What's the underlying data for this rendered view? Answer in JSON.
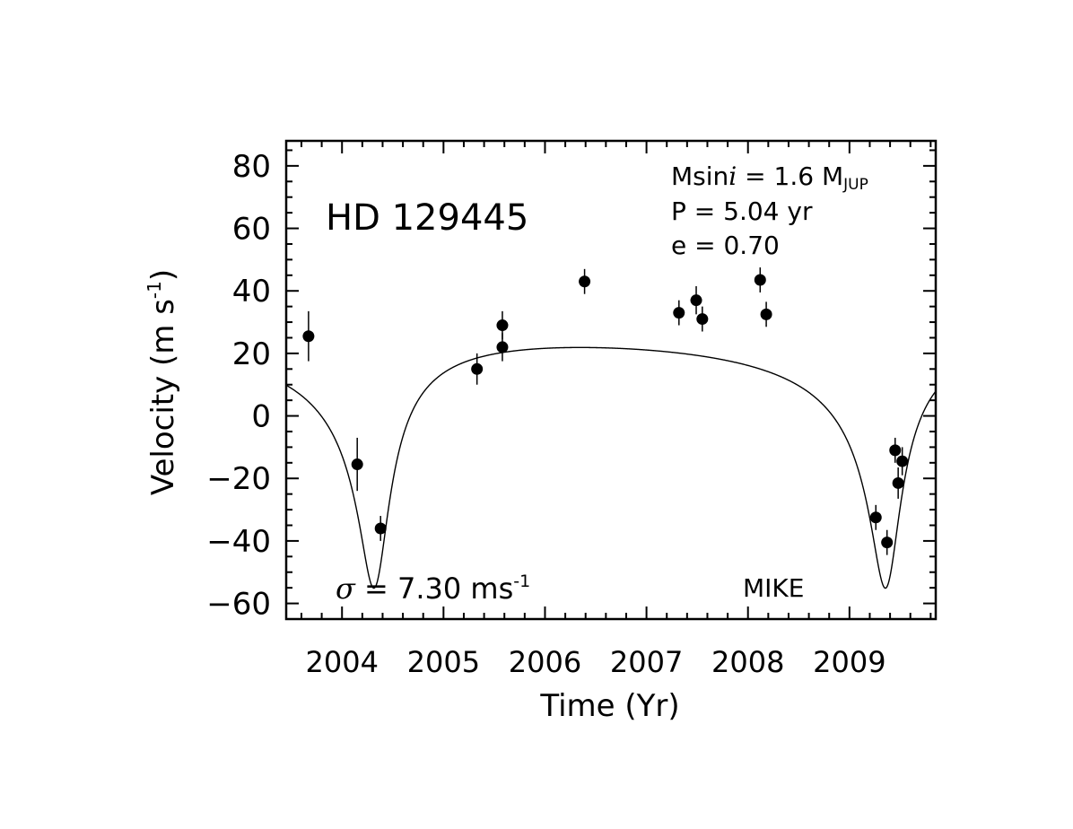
{
  "chart_data": {
    "type": "scatter",
    "title": "HD 129445",
    "xlabel": "Time (Yr)",
    "ylabel": "Velocity (m s",
    "ylabel_sup": "-1",
    "ylabel_close": ")",
    "xlim": [
      2003.45,
      2009.85
    ],
    "ylim": [
      -65,
      88
    ],
    "x_ticks": [
      2004,
      2005,
      2006,
      2007,
      2008,
      2009
    ],
    "x_tick_labels": [
      "2004",
      "2005",
      "2006",
      "2007",
      "2008",
      "2009"
    ],
    "y_ticks": [
      -60,
      -40,
      -20,
      0,
      20,
      40,
      60,
      80
    ],
    "y_tick_labels": [
      "−60",
      "−40",
      "−20",
      "0",
      "20",
      "40",
      "60",
      "80"
    ],
    "annotations": {
      "msini_prefix": "Msin",
      "msini_italic": "i",
      "msini_value": " = 1.6 M",
      "msini_sub": "JUP",
      "period": "P = 5.04 yr",
      "eccentricity": "e = 0.70",
      "sigma_symbol": "σ",
      "sigma_value": " = 7.30 ms",
      "sigma_sup": "-1",
      "instrument": "MIKE"
    },
    "series": [
      {
        "name": "observations",
        "points": [
          {
            "x": 2003.67,
            "y": 25.5,
            "err": 8.0
          },
          {
            "x": 2004.15,
            "y": -15.5,
            "err": 8.5
          },
          {
            "x": 2004.38,
            "y": -36.0,
            "err": 4.0
          },
          {
            "x": 2005.33,
            "y": 15.0,
            "err": 5.0
          },
          {
            "x": 2005.58,
            "y": 29.0,
            "err": 4.5
          },
          {
            "x": 2005.58,
            "y": 22.0,
            "err": 4.5
          },
          {
            "x": 2006.39,
            "y": 43.0,
            "err": 4.0
          },
          {
            "x": 2007.32,
            "y": 33.0,
            "err": 4.0
          },
          {
            "x": 2007.49,
            "y": 37.0,
            "err": 4.5
          },
          {
            "x": 2007.55,
            "y": 31.0,
            "err": 4.0
          },
          {
            "x": 2008.12,
            "y": 43.5,
            "err": 4.0
          },
          {
            "x": 2008.18,
            "y": 32.5,
            "err": 4.0
          },
          {
            "x": 2009.26,
            "y": -32.5,
            "err": 4.0
          },
          {
            "x": 2009.37,
            "y": -40.5,
            "err": 4.0
          },
          {
            "x": 2009.45,
            "y": -11.0,
            "err": 4.0
          },
          {
            "x": 2009.48,
            "y": -21.5,
            "err": 5.0
          },
          {
            "x": 2009.52,
            "y": -14.5,
            "err": 4.5
          }
        ]
      },
      {
        "name": "keplerian-fit",
        "period_yr": 5.04,
        "eccentricity": 0.7,
        "K": 38.5,
        "gamma": 10.0,
        "omega_rad": 3.3,
        "periastron_yr": 2004.33
      }
    ]
  }
}
